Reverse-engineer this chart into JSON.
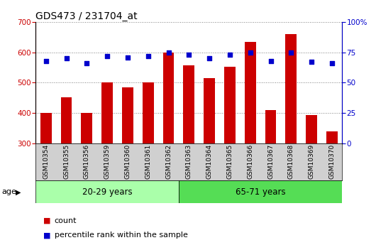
{
  "title": "GDS473 / 231704_at",
  "categories": [
    "GSM10354",
    "GSM10355",
    "GSM10356",
    "GSM10359",
    "GSM10360",
    "GSM10361",
    "GSM10362",
    "GSM10363",
    "GSM10364",
    "GSM10365",
    "GSM10366",
    "GSM10367",
    "GSM10368",
    "GSM10369",
    "GSM10370"
  ],
  "counts": [
    400,
    452,
    400,
    502,
    485,
    500,
    600,
    558,
    515,
    553,
    635,
    410,
    660,
    393,
    340
  ],
  "percentiles": [
    68,
    70,
    66,
    72,
    71,
    72,
    75,
    73,
    70,
    73,
    75,
    68,
    75,
    67,
    66
  ],
  "group1_label": "20-29 years",
  "group2_label": "65-71 years",
  "group1_count": 7,
  "group2_count": 8,
  "ylim_left": [
    300,
    700
  ],
  "ylim_right": [
    0,
    100
  ],
  "yticks_left": [
    300,
    400,
    500,
    600,
    700
  ],
  "yticks_right": [
    0,
    25,
    50,
    75,
    100
  ],
  "bar_color": "#cc0000",
  "dot_color": "#0000cc",
  "bar_base": 300,
  "group1_bg": "#aaffaa",
  "group2_bg": "#55dd55",
  "xlabel_bg": "#d0d0d0",
  "age_label": "age",
  "legend_count": "count",
  "legend_pct": "percentile rank within the sample",
  "title_fontsize": 10,
  "tick_fontsize": 7.5,
  "label_fontsize": 8,
  "group_label_fontsize": 8.5,
  "cat_fontsize": 6.5
}
